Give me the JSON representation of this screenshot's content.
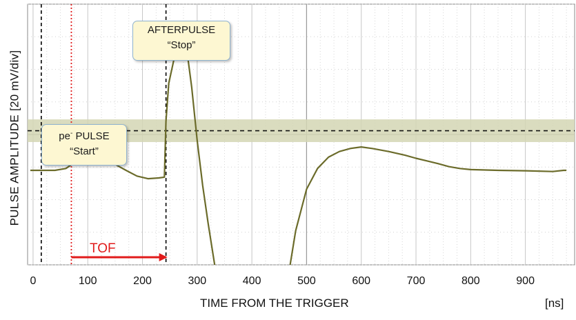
{
  "chart_data": {
    "type": "line",
    "xlabel": "TIME FROM THE TRIGGER",
    "xunit": "[ns]",
    "ylabel": "PULSE AMPLITUDE [20 mV/div]",
    "xlim": [
      -10,
      990
    ],
    "x_ticks": [
      "0",
      "100",
      "200",
      "300",
      "400",
      "500",
      "600",
      "700",
      "800",
      "900"
    ],
    "x_tick_values": [
      0,
      100,
      200,
      300,
      400,
      500,
      600,
      700,
      800,
      900
    ],
    "ylim": [
      -2.5,
      4.4
    ],
    "grid": true,
    "series": [
      {
        "color": "#6b6b2a",
        "x": [
          -5,
          40,
          60,
          80,
          90,
          100,
          115,
          130,
          150,
          170,
          190,
          210,
          230,
          240,
          243,
          248,
          260,
          270,
          275,
          280,
          290,
          300,
          310,
          320,
          332
        ],
        "y": [
          0.0,
          0.0,
          0.05,
          0.25,
          0.42,
          0.52,
          0.48,
          0.32,
          0.16,
          0.0,
          -0.15,
          -0.22,
          -0.2,
          -0.18,
          1.3,
          2.3,
          3.1,
          3.5,
          3.55,
          3.3,
          2.2,
          0.8,
          -0.4,
          -1.4,
          -2.5
        ]
      },
      {
        "color": "#6b6b2a",
        "x": [
          470,
          480,
          500,
          520,
          540,
          560,
          580,
          600,
          620,
          650,
          680,
          700,
          720,
          740,
          760,
          780,
          800,
          850,
          900,
          950,
          970,
          975
        ],
        "y": [
          -2.5,
          -1.6,
          -0.5,
          0.05,
          0.35,
          0.5,
          0.58,
          0.62,
          0.58,
          0.5,
          0.4,
          0.32,
          0.25,
          0.18,
          0.1,
          0.05,
          0.02,
          0.0,
          -0.01,
          -0.03,
          0.0,
          0.0
        ]
      }
    ],
    "threshold_dashed": 1.05,
    "threshold_band": [
      0.75,
      1.35
    ],
    "markers": [
      {
        "x": 15,
        "style": "dashed",
        "color": "#000000"
      },
      {
        "x": 70,
        "style": "dotted",
        "color": "#e11b1b"
      },
      {
        "x": 243,
        "style": "dashed",
        "color": "#000000"
      }
    ],
    "annotations": {
      "afterpulse_line1": "AFTERPULSE",
      "afterpulse_line2": "“Stop”",
      "start_line1_main": "pe",
      "start_line1_sup": "-",
      "start_line1_rest": " PULSE",
      "start_line2": "“Start”",
      "tof": "TOF"
    },
    "colors": {
      "curve": "#6b6b2a",
      "band": "#d4d6b4",
      "callout_fill": "#fdf7d2",
      "callout_border": "#8fb3cf",
      "arrow_blue": "#2a7bbf",
      "tof_red": "#e11b1b"
    }
  }
}
